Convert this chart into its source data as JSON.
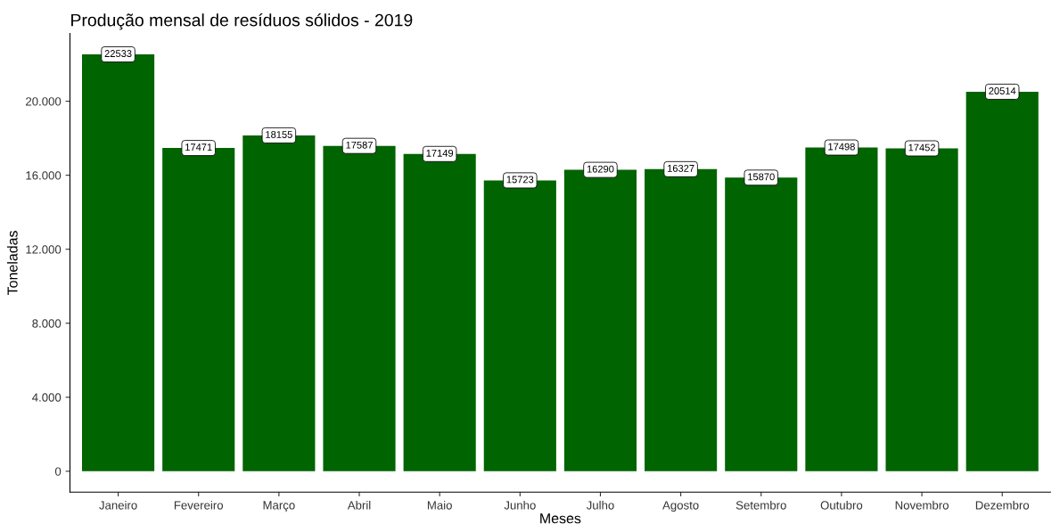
{
  "chart_data": {
    "type": "bar",
    "title": "Produção mensal de resíduos sólidos - 2019",
    "xlabel": "Meses",
    "ylabel": "Toneladas",
    "categories": [
      "Janeiro",
      "Fevereiro",
      "Março",
      "Abril",
      "Maio",
      "Junho",
      "Julho",
      "Agosto",
      "Setembro",
      "Outubro",
      "Novembro",
      "Dezembro"
    ],
    "values": [
      22533,
      17471,
      18155,
      17587,
      17149,
      15723,
      16290,
      16327,
      15870,
      17498,
      17452,
      20514
    ],
    "color": "#006400",
    "ylim": [
      -1127,
      23660
    ],
    "yticks": [
      {
        "value": 0,
        "label": "0"
      },
      {
        "value": 4000,
        "label": "4.000"
      },
      {
        "value": 8000,
        "label": "8.000"
      },
      {
        "value": 12000,
        "label": "12.000"
      },
      {
        "value": 16000,
        "label": "16.000"
      },
      {
        "value": 20000,
        "label": "20.000"
      }
    ],
    "data_labels": true,
    "grid": false,
    "legend": false
  }
}
